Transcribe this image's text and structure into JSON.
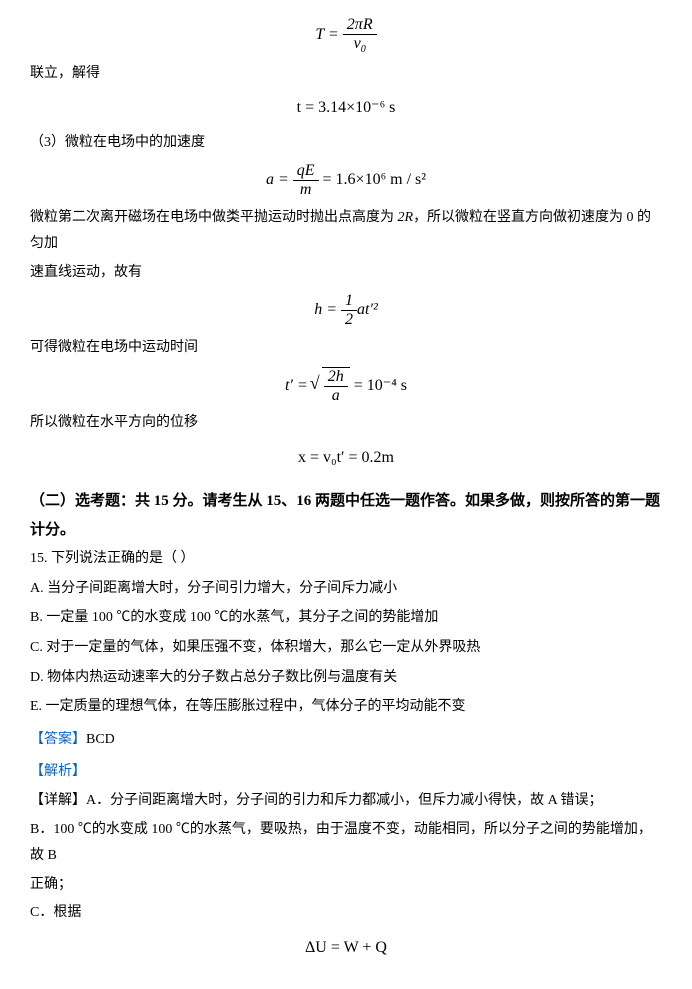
{
  "eq1": {
    "lhs": "T",
    "num": "2πR",
    "den": "v",
    "den_sub": "0"
  },
  "t1": "联立，解得",
  "eq2": "t = 3.14×10⁻⁶ s",
  "t2": "（3）微粒在电场中的加速度",
  "eq3": {
    "lhs": "a",
    "num": "qE",
    "den": "m",
    "rhs": "= 1.6×10⁶ m / s²"
  },
  "t3a": "微粒第二次离开磁场在电场中做类平抛运动时抛出点高度为 ",
  "t3b": "2R",
  "t3c": "，所以微粒在竖直方向做初速度为 0 的匀加",
  "t3d": "速直线运动，故有",
  "eq4": {
    "lhs": "h",
    "num": "1",
    "den": "2",
    "tail": "at′²"
  },
  "t4": "可得微粒在电场中运动时间",
  "eq5": {
    "lhs": "t′",
    "num": "2h",
    "den": "a",
    "rhs": "= 10⁻⁴ s"
  },
  "t5": "所以微粒在水平方向的位移",
  "eq6": "x = v₀t′ = 0.2m",
  "section": "（二）选考题：共 15 分。请考生从 15、16 两题中任选一题作答。如果多做，则按所答的第一题计分。",
  "q15": "15. 下列说法正确的是（  ）",
  "optA": "A. 当分子间距离增大时，分子间引力增大，分子间斥力减小",
  "optB": "B. 一定量 100 ℃的水变成 100 ℃的水蒸气，其分子之间的势能增加",
  "optC": "C. 对于一定量的气体，如果压强不变，体积增大，那么它一定从外界吸热",
  "optD": "D. 物体内热运动速率大的分子数占总分子数比例与温度有关",
  "optE": "E. 一定质量的理想气体，在等压膨胀过程中，气体分子的平均动能不变",
  "ansLabel": "【答案】",
  "ansVal": "BCD",
  "jiexi": "【解析】",
  "detA": "【详解】A．分子间距离增大时，分子间的引力和斥力都减小，但斥力减小得快，故 A 错误；",
  "detB": "B．100 ℃的水变成 100 ℃的水蒸气，要吸热，由于温度不变，动能相同，所以分子之间的势能增加，故 B",
  "detB2": "正确；",
  "detC": "C．根据",
  "eq7": "ΔU = W + Q",
  "colors": {
    "text": "#000000",
    "link": "#0066cc",
    "bg": "#ffffff"
  },
  "fontsize": {
    "body": 14,
    "formula": 16,
    "section": 15
  }
}
